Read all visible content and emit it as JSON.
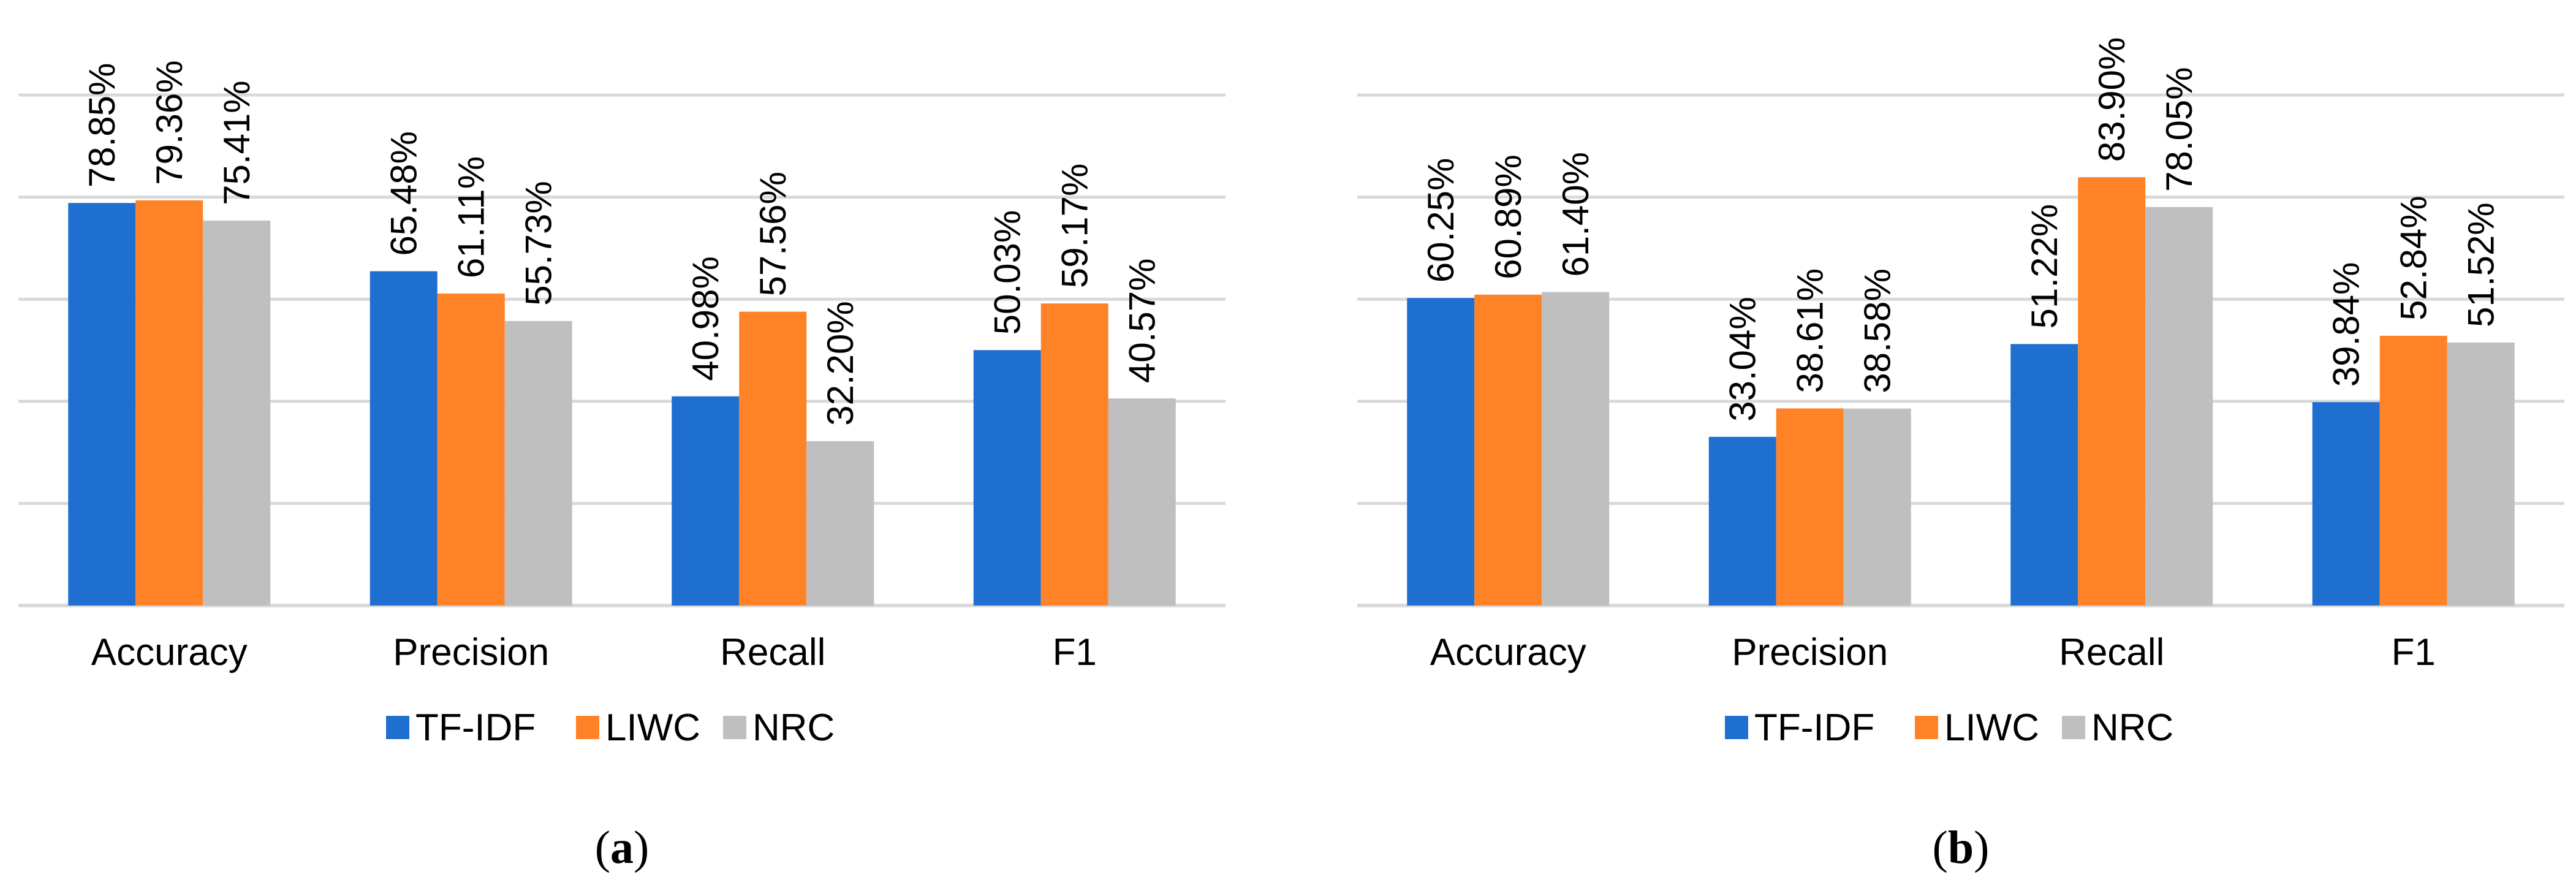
{
  "colors": {
    "tfidf": "#1f6fd1",
    "liwc": "#ff8226",
    "nrc": "#bfbfbf",
    "grid": "#d9d9d9"
  },
  "legend": [
    "TF-IDF",
    "LIWC",
    "NRC"
  ],
  "chart_data": [
    {
      "type": "bar",
      "panel_label": "a",
      "categories": [
        "Accuracy",
        "Precision",
        "Recall",
        "F1"
      ],
      "series": [
        {
          "name": "TF-IDF",
          "values": [
            78.85,
            65.48,
            40.98,
            50.03
          ],
          "labels": [
            "78.85%",
            "65.48%",
            "40.98%",
            "50.03%"
          ]
        },
        {
          "name": "LIWC",
          "values": [
            79.36,
            61.11,
            57.56,
            59.17
          ],
          "labels": [
            "79.36%",
            "61.11%",
            "57.56%",
            "59.17%"
          ]
        },
        {
          "name": "NRC",
          "values": [
            75.41,
            55.73,
            32.2,
            40.57
          ],
          "labels": [
            "75.41%",
            "55.73%",
            "32.20%",
            "40.57%"
          ]
        }
      ],
      "ylim": [
        0,
        100
      ],
      "gridlines": true,
      "legend_position": "bottom"
    },
    {
      "type": "bar",
      "panel_label": "b",
      "categories": [
        "Accuracy",
        "Precision",
        "Recall",
        "F1"
      ],
      "series": [
        {
          "name": "TF-IDF",
          "values": [
            60.25,
            33.04,
            51.22,
            39.84
          ],
          "labels": [
            "60.25%",
            "33.04%",
            "51.22%",
            "39.84%"
          ]
        },
        {
          "name": "LIWC",
          "values": [
            60.89,
            38.61,
            83.9,
            52.84
          ],
          "labels": [
            "60.89%",
            "38.61%",
            "83.90%",
            "52.84%"
          ]
        },
        {
          "name": "NRC",
          "values": [
            61.4,
            38.58,
            78.05,
            51.52
          ],
          "labels": [
            "61.40%",
            "38.58%",
            "78.05%",
            "51.52%"
          ]
        }
      ],
      "ylim": [
        0,
        100
      ],
      "gridlines": true,
      "legend_position": "bottom"
    }
  ]
}
